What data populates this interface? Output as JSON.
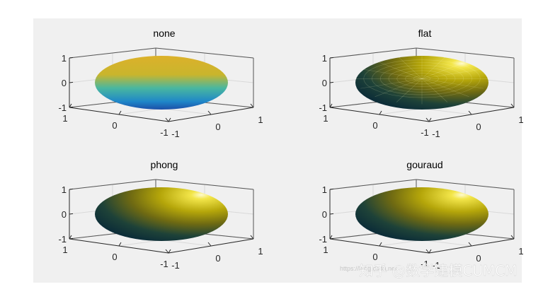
{
  "figure": {
    "background": "#f0f0f0",
    "panel_background": "#ffffff"
  },
  "chart_data": [
    {
      "type": "surface",
      "title": "none",
      "xticks": [
        "-1",
        "0",
        "1"
      ],
      "yticks": [
        "-1",
        "0",
        "1"
      ],
      "zticks": [
        "-1",
        "0",
        "1"
      ],
      "xlim": [
        -1,
        1
      ],
      "ylim": [
        -1,
        1
      ],
      "zlim": [
        -1,
        1
      ],
      "grid": true,
      "lighting": "none",
      "colors": {
        "top": "#d9b02a",
        "bottom": "#1a6fc4"
      }
    },
    {
      "type": "surface",
      "title": "flat",
      "xticks": [
        "-1",
        "0",
        "1"
      ],
      "yticks": [
        "-1",
        "0",
        "1"
      ],
      "zticks": [
        "-1",
        "0",
        "1"
      ],
      "xlim": [
        -1,
        1
      ],
      "ylim": [
        -1,
        1
      ],
      "zlim": [
        -1,
        1
      ],
      "grid": true,
      "lighting": "flat",
      "colors": {
        "light": "#fff9c8",
        "mid": "#b0a300",
        "dark": "#0e3a48"
      }
    },
    {
      "type": "surface",
      "title": "phong",
      "xticks": [
        "-1",
        "0",
        "1"
      ],
      "yticks": [
        "-1",
        "0",
        "1"
      ],
      "zticks": [
        "-1",
        "0",
        "1"
      ],
      "xlim": [
        -1,
        1
      ],
      "ylim": [
        -1,
        1
      ],
      "zlim": [
        -1,
        1
      ],
      "grid": true,
      "lighting": "phong",
      "colors": {
        "light": "#fff9c8",
        "mid": "#b0a300",
        "dark": "#0e3a48"
      }
    },
    {
      "type": "surface",
      "title": "gouraud",
      "xticks": [
        "-1",
        "0",
        "1"
      ],
      "yticks": [
        "-1",
        "0",
        "1"
      ],
      "zticks": [
        "-1",
        "0",
        "1"
      ],
      "xlim": [
        -1,
        1
      ],
      "ylim": [
        -1,
        1
      ],
      "zlim": [
        -1,
        1
      ],
      "grid": true,
      "lighting": "gouraud",
      "colors": {
        "light": "#fff9c8",
        "mid": "#b0a300",
        "dark": "#0e3a48"
      }
    }
  ],
  "watermark": {
    "text": "知乎 @数学建模CUMCM",
    "url_text": "https://blog.csdn.net"
  }
}
